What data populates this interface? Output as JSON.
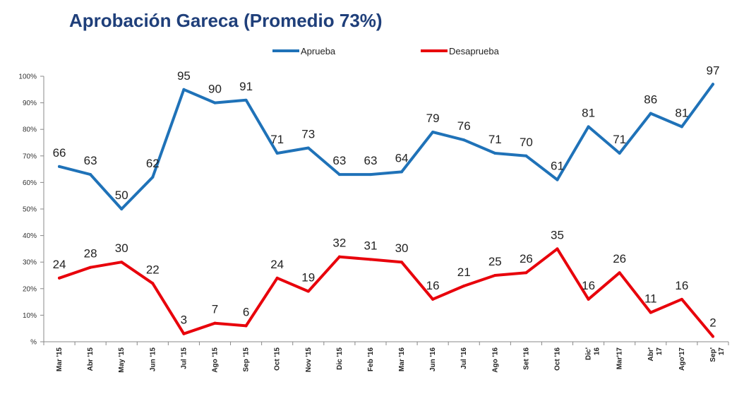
{
  "chart_data": {
    "type": "line",
    "title": "Aprobación Gareca (Promedio 73%)",
    "xlabel": "",
    "ylabel": "",
    "ylim": [
      0,
      100
    ],
    "yticks": [
      "%",
      "10%",
      "20%",
      "30%",
      "40%",
      "50%",
      "60%",
      "70%",
      "80%",
      "90%",
      "100%"
    ],
    "categories": [
      "Mar '15",
      "Abr '15",
      "May '15",
      "Jun '15",
      "Jul '15",
      "Ago '15",
      "Sep '15",
      "Oct '15",
      "Nov '15",
      "Dic '15",
      "Feb '16",
      "Mar '16",
      "Jun '16",
      "Jul '16",
      "Ago '16",
      "Set '16",
      "Oct '16",
      "Dic' 16",
      "Mar'17",
      "Abr' 17",
      "Ago'17",
      "Sep' 17"
    ],
    "series": [
      {
        "name": "Aprueba",
        "color": "#1f72b8",
        "values": [
          66,
          63,
          50,
          62,
          95,
          90,
          91,
          71,
          73,
          63,
          63,
          64,
          79,
          76,
          71,
          70,
          61,
          81,
          71,
          86,
          81,
          97
        ]
      },
      {
        "name": "Desaprueba",
        "color": "#e8000b",
        "values": [
          24,
          28,
          30,
          22,
          3,
          7,
          6,
          24,
          19,
          32,
          31,
          30,
          16,
          21,
          25,
          26,
          35,
          16,
          26,
          11,
          16,
          2
        ]
      }
    ],
    "legend": "top",
    "grid": false
  }
}
